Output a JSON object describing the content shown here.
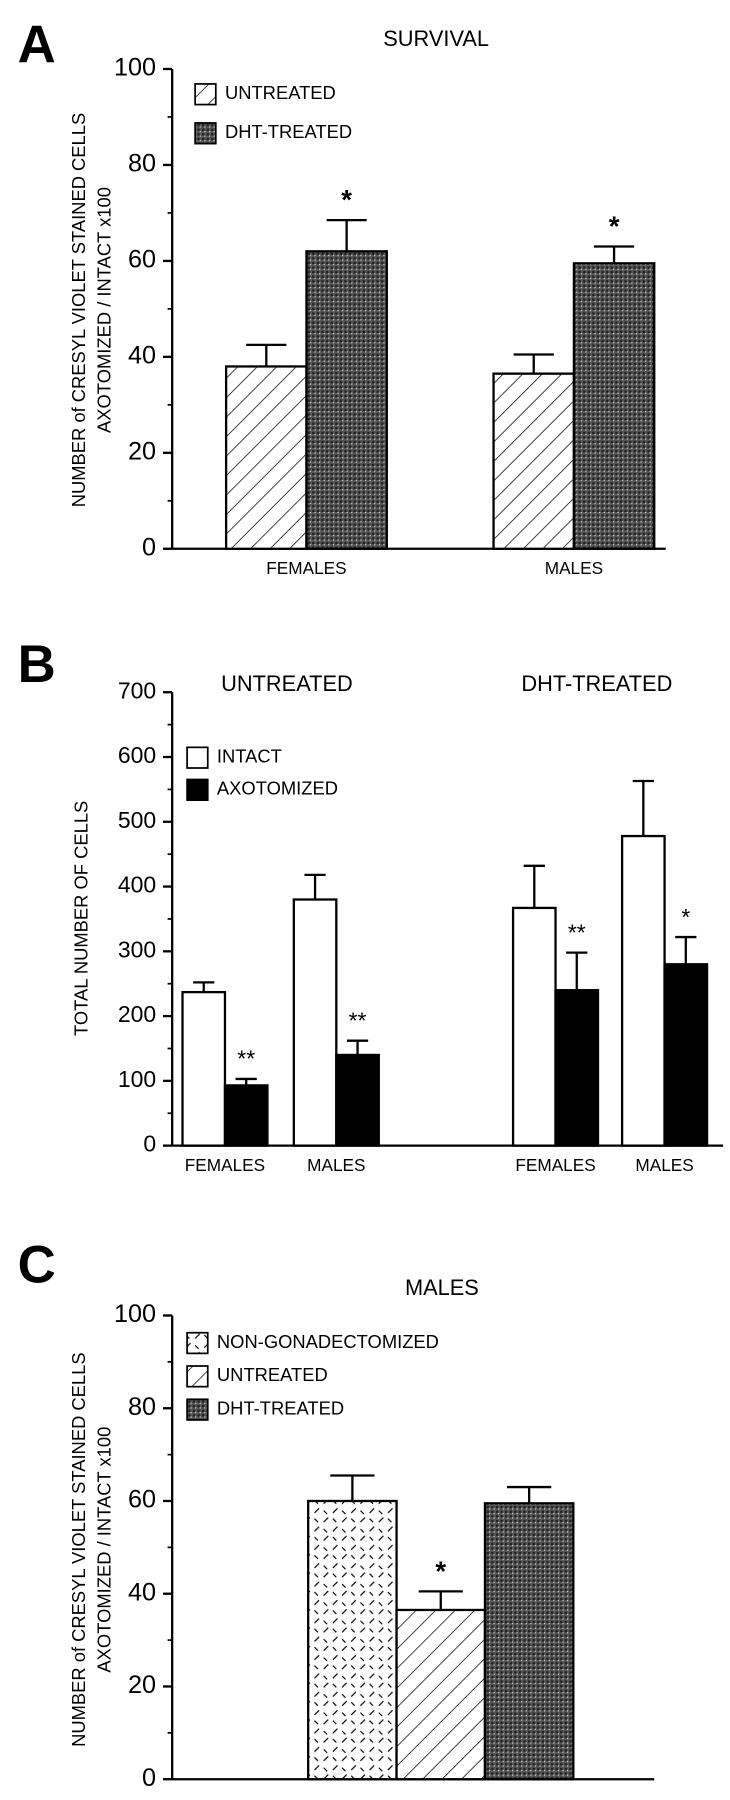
{
  "chart_data": [
    {
      "type": "bar",
      "panel_label": "A",
      "title": "SURVIVAL",
      "y_label": [
        "NUMBER of CRESYL VIOLET STAINED CELLS",
        "AXOTOMIZED / INTACT x100"
      ],
      "categories": [
        "FEMALES",
        "MALES"
      ],
      "series": [
        {
          "name": "UNTREATED",
          "pattern": "hatch",
          "color": "#000000",
          "values": [
            38,
            36.5
          ],
          "errors": [
            4.5,
            4
          ],
          "annotations": [
            null,
            null
          ]
        },
        {
          "name": "DHT-TREATED",
          "pattern": "crosshatch",
          "color": "#000000",
          "values": [
            62,
            59.5
          ],
          "errors": [
            6.5,
            3.5
          ],
          "annotations": [
            "*",
            "*"
          ]
        }
      ],
      "ylim": [
        0,
        100
      ],
      "yticks": [
        0,
        20,
        40,
        60,
        80,
        100
      ]
    },
    {
      "type": "bar",
      "panel_label": "B",
      "titles": [
        "UNTREATED",
        "DHT-TREATED"
      ],
      "y_label": [
        "TOTAL NUMBER OF CELLS"
      ],
      "categories": [
        "FEMALES",
        "MALES",
        "FEMALES",
        "MALES"
      ],
      "series": [
        {
          "name": "INTACT",
          "pattern": "white",
          "color": "#000000",
          "values": [
            237,
            380,
            367,
            478
          ],
          "errors": [
            15,
            38,
            65,
            85
          ],
          "annotations": [
            null,
            null,
            null,
            null
          ]
        },
        {
          "name": "AXOTOMIZED",
          "pattern": "black",
          "color": "#000000",
          "values": [
            93,
            140,
            240,
            280
          ],
          "errors": [
            10,
            22,
            58,
            42
          ],
          "annotations": [
            "**",
            "**",
            "**",
            "*"
          ]
        }
      ],
      "ylim": [
        0,
        700
      ],
      "yticks": [
        0,
        100,
        200,
        300,
        400,
        500,
        600,
        700
      ]
    },
    {
      "type": "bar",
      "panel_label": "C",
      "title": "MALES",
      "y_label": [
        "NUMBER of CRESYL VIOLET STAINED CELLS",
        "AXOTOMIZED / INTACT x100"
      ],
      "categories": [
        null
      ],
      "series": [
        {
          "name": "NON-GONADECTOMIZED",
          "pattern": "dash",
          "color": "#000000",
          "values": [
            60
          ],
          "errors": [
            5.5
          ],
          "annotations": [
            null
          ]
        },
        {
          "name": "UNTREATED",
          "pattern": "hatch",
          "color": "#000000",
          "values": [
            36.5
          ],
          "errors": [
            4
          ],
          "annotations": [
            "*"
          ]
        },
        {
          "name": "DHT-TREATED",
          "pattern": "crosshatch",
          "color": "#000000",
          "values": [
            59.5
          ],
          "errors": [
            3.5
          ],
          "annotations": [
            null
          ]
        }
      ],
      "ylim": [
        0,
        100
      ],
      "yticks": [
        0,
        20,
        40,
        60,
        80,
        100
      ]
    }
  ]
}
